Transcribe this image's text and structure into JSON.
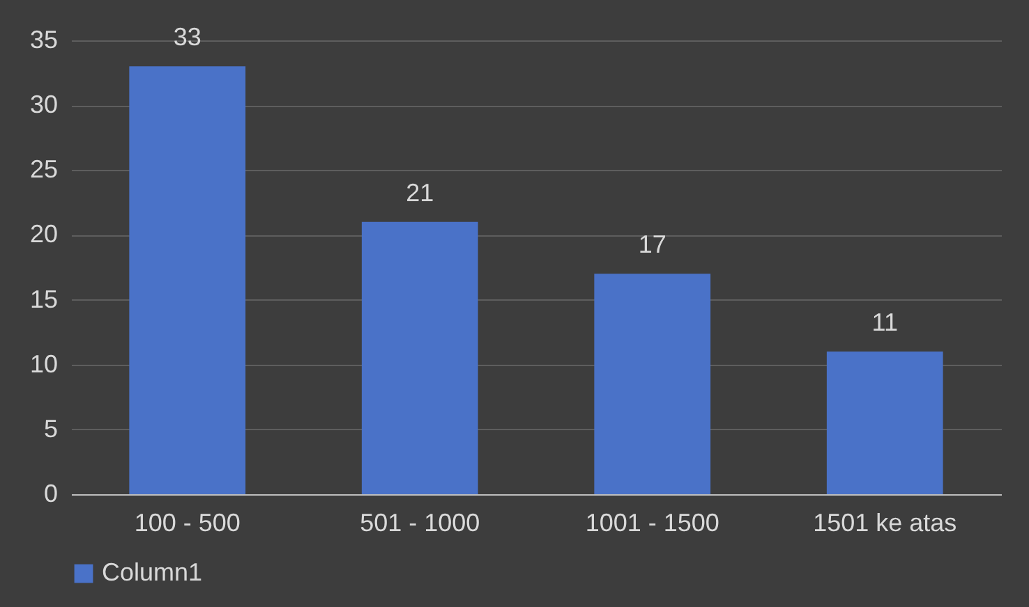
{
  "chart_data": {
    "type": "bar",
    "categories": [
      "100 - 500",
      "501 - 1000",
      "1001 - 1500",
      "1501 ke atas"
    ],
    "series": [
      {
        "name": "Column1",
        "color": "#4a72c8",
        "values": [
          33,
          21,
          17,
          11
        ]
      }
    ],
    "ylim": [
      0,
      35
    ],
    "yticks": [
      0,
      5,
      10,
      15,
      20,
      25,
      30,
      35
    ],
    "grid": "y",
    "legend": "bottom",
    "data_labels": true
  }
}
